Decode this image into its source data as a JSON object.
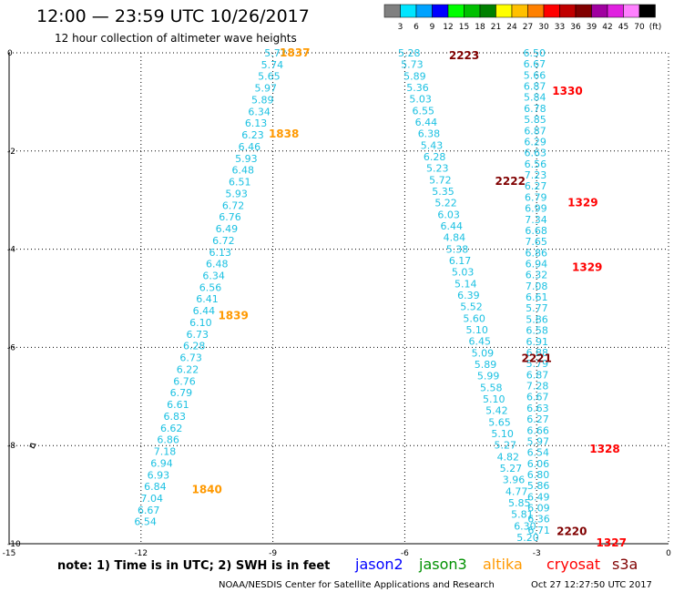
{
  "header": {
    "title": "12:00 — 23:59 UTC 10/26/2017",
    "subtitle": "12 hour collection of altimeter wave heights"
  },
  "legend": {
    "colors": [
      "#808080",
      "#00e5ff",
      "#00a2ff",
      "#0000ff",
      "#00ff00",
      "#00c000",
      "#008000",
      "#ffff00",
      "#ffc000",
      "#ff8000",
      "#ff0000",
      "#c00000",
      "#800000",
      "#a000a0",
      "#e020e0",
      "#ff80ff",
      "#000000"
    ],
    "labels": [
      "3",
      "6",
      "9",
      "12",
      "15",
      "18",
      "21",
      "24",
      "27",
      "30",
      "33",
      "36",
      "39",
      "42",
      "45",
      "70",
      "(ft)"
    ]
  },
  "note": "note: 1) Time is in UTC; 2) SWH is in feet",
  "satellites": [
    {
      "name": "jason2",
      "color": "#0000ff"
    },
    {
      "name": "jason3",
      "color": "#009000"
    },
    {
      "name": "altika",
      "color": "#ff9900"
    },
    {
      "name": "cryosat",
      "color": "#ff0000"
    },
    {
      "name": "s3a",
      "color": "#800000"
    }
  ],
  "credit": "NOAA/NESDIS Center for Satellite Applications and Research",
  "timestamp": "Oct 27 12:27:50 UTC 2017",
  "chart_data": {
    "type": "scatter",
    "xlim": [
      -15,
      0
    ],
    "ylim": [
      -10,
      0
    ],
    "xticks": [
      "-15",
      "-12",
      "-9",
      "-6",
      "-3",
      "0"
    ],
    "yticks": [
      "0",
      "-2",
      "-4",
      "-6",
      "-8",
      "-10"
    ],
    "grid": true,
    "tracks": [
      {
        "name": "altika",
        "color": "#1cc1e2",
        "start": [
          -8.94,
          0.0
        ],
        "end": [
          -11.9,
          -9.55
        ],
        "values": [
          "5.72",
          "5.74",
          "5.65",
          "5.97",
          "5.89",
          "6.34",
          "6.13",
          "6.23",
          "6.46",
          "5.93",
          "6.48",
          "6.51",
          "5.93",
          "6.72",
          "6.76",
          "6.49",
          "6.72",
          "6.13",
          "6.48",
          "6.34",
          "6.56",
          "6.41",
          "6.44",
          "6.10",
          "6.73",
          "6.28",
          "6.73",
          "6.22",
          "6.76",
          "6.79",
          "6.61",
          "6.83",
          "6.62",
          "6.86",
          "7.18",
          "6.94",
          "6.93",
          "6.84",
          "7.04",
          "6.67",
          "6.54"
        ]
      },
      {
        "name": "s3a",
        "color": "#1cc1e2",
        "start": [
          -5.9,
          0.0
        ],
        "end": [
          -3.2,
          -9.87
        ],
        "values": [
          "5.28",
          "5.73",
          "5.89",
          "5.36",
          "5.03",
          "6.55",
          "6.44",
          "6.38",
          "5.43",
          "6.28",
          "5.23",
          "5.72",
          "5.35",
          "5.22",
          "6.03",
          "6.44",
          "4.84",
          "5.38",
          "6.17",
          "5.03",
          "5.14",
          "6.39",
          "5.52",
          "5.60",
          "5.10",
          "6.45",
          "5.09",
          "5.89",
          "5.99",
          "5.58",
          "5.10",
          "5.42",
          "5.65",
          "5.10",
          "5.27",
          "4.82",
          "5.27",
          "3.96",
          "4.77",
          "5.85",
          "5.81",
          "6.30",
          "5.20"
        ]
      },
      {
        "name": "cryosat",
        "color": "#1cc1e2",
        "start": [
          -3.05,
          0.0
        ],
        "end": [
          -2.95,
          -9.72
        ],
        "values": [
          "6.50",
          "6.67",
          "5.66",
          "6.87",
          "5.84",
          "6.78",
          "5.85",
          "6.87",
          "6.29",
          "6.63",
          "6.56",
          "7.23",
          "6.27",
          "6.79",
          "6.99",
          "7.34",
          "6.68",
          "7.65",
          "6.86",
          "6.94",
          "6.32",
          "7.08",
          "6.61",
          "5.77",
          "5.86",
          "6.58",
          "6.91",
          "6.88",
          "5.79",
          "6.87",
          "7.28",
          "6.67",
          "6.63",
          "6.27",
          "6.66",
          "5.97",
          "6.54",
          "6.06",
          "6.80",
          "5.86",
          "6.49",
          "6.09",
          "6.36",
          "6.71"
        ]
      }
    ],
    "pass_labels": [
      {
        "text": "1837",
        "x": -8.5,
        "y": 0.0,
        "color": "#ff9900"
      },
      {
        "text": "1838",
        "x": -8.75,
        "y": -1.65,
        "color": "#ff9900"
      },
      {
        "text": "1839",
        "x": -9.9,
        "y": -5.35,
        "color": "#ff9900"
      },
      {
        "text": "1840",
        "x": -10.5,
        "y": -8.9,
        "color": "#ff9900"
      },
      {
        "text": "2223",
        "x": -4.65,
        "y": -0.06,
        "color": "#800000"
      },
      {
        "text": "2222",
        "x": -3.6,
        "y": -2.62,
        "color": "#800000"
      },
      {
        "text": "2221",
        "x": -3.0,
        "y": -6.22,
        "color": "#800000"
      },
      {
        "text": "2220",
        "x": -2.2,
        "y": -9.75,
        "color": "#800000"
      },
      {
        "text": "1330",
        "x": -2.3,
        "y": -0.78,
        "color": "#ff0000"
      },
      {
        "text": "1329",
        "x": -1.95,
        "y": -3.05,
        "color": "#ff0000"
      },
      {
        "text": "1329",
        "x": -1.85,
        "y": -4.37,
        "color": "#ff0000"
      },
      {
        "text": "1328",
        "x": -1.45,
        "y": -8.07,
        "color": "#ff0000"
      },
      {
        "text": "1327",
        "x": -1.3,
        "y": -9.98,
        "color": "#ff0000"
      }
    ]
  }
}
